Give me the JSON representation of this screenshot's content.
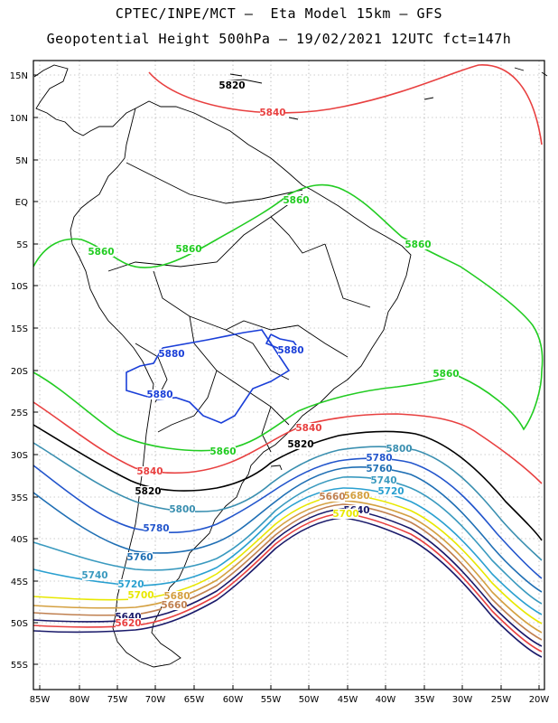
{
  "header": {
    "line1": "CPTEC/INPE/MCT –  Eta Model 15km – GFS",
    "line2": "Geopotential Height 500hPa – 19/02/2021 12UTC fct=147h"
  },
  "axes": {
    "lat_ticks": [
      "15N",
      "10N",
      "5N",
      "EQ",
      "5S",
      "10S",
      "15S",
      "20S",
      "25S",
      "30S",
      "35S",
      "40S",
      "45S",
      "50S",
      "55S"
    ],
    "lon_ticks": [
      "85W",
      "80W",
      "75W",
      "70W",
      "65W",
      "60W",
      "55W",
      "50W",
      "45W",
      "40W",
      "35W",
      "30W",
      "25W",
      "20W"
    ]
  },
  "colors": {
    "c5860": "#22cc22",
    "c5880": "#1a3fd8",
    "c5840": "#e84040",
    "c5820": "#000000",
    "c5800": "#3a8fb0",
    "c5780": "#2255cc",
    "c5760": "#1f6fb4",
    "c5740": "#3a9abf",
    "c5720": "#2aa0d0",
    "c5700": "#e8e800",
    "c5680": "#d4a040",
    "c5660": "#c08050",
    "c5640": "#1a1a6a",
    "c5620": "#e84040",
    "coast": "#000000"
  },
  "contour_labels": [
    {
      "text": "5820",
      "color": "c5820"
    },
    {
      "text": "5840",
      "color": "c5840"
    },
    {
      "text": "5860",
      "color": "c5860"
    },
    {
      "text": "5860",
      "color": "c5860"
    },
    {
      "text": "5860",
      "color": "c5860"
    },
    {
      "text": "5860",
      "color": "c5860"
    },
    {
      "text": "5880",
      "color": "c5880"
    },
    {
      "text": "5880",
      "color": "c5880"
    },
    {
      "text": "5880",
      "color": "c5880"
    },
    {
      "text": "5860",
      "color": "c5860"
    },
    {
      "text": "5860",
      "color": "c5860"
    },
    {
      "text": "5840",
      "color": "c5840"
    },
    {
      "text": "5820",
      "color": "c5820"
    },
    {
      "text": "5840",
      "color": "c5840"
    },
    {
      "text": "5820",
      "color": "c5820"
    },
    {
      "text": "5800",
      "color": "c5800"
    },
    {
      "text": "5800",
      "color": "c5800"
    },
    {
      "text": "5780",
      "color": "c5780"
    },
    {
      "text": "5780",
      "color": "c5780"
    },
    {
      "text": "5760",
      "color": "c5760"
    },
    {
      "text": "5760",
      "color": "c5760"
    },
    {
      "text": "5740",
      "color": "c5740"
    },
    {
      "text": "5740",
      "color": "c5740"
    },
    {
      "text": "5720",
      "color": "c5720"
    },
    {
      "text": "5720",
      "color": "c5720"
    },
    {
      "text": "5700",
      "color": "c5700"
    },
    {
      "text": "5680",
      "color": "c5680"
    },
    {
      "text": "5680",
      "color": "c5680"
    },
    {
      "text": "5660",
      "color": "c5660"
    },
    {
      "text": "5660",
      "color": "c5660"
    },
    {
      "text": "5640",
      "color": "c5640"
    },
    {
      "text": "5620",
      "color": "c5620"
    },
    {
      "text": "5640",
      "color": "c5640"
    },
    {
      "text": "5700",
      "color": "c5700"
    }
  ]
}
